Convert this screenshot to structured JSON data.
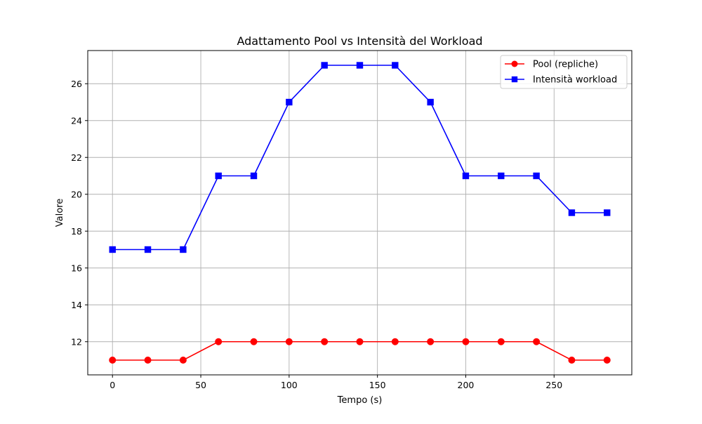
{
  "chart_data": {
    "type": "line",
    "title": "Adattamento Pool vs Intensità del Workload",
    "xlabel": "Tempo (s)",
    "ylabel": "Valore",
    "xlim": [
      -14,
      294
    ],
    "ylim": [
      10.2,
      27.8
    ],
    "xticks": [
      0,
      50,
      100,
      150,
      200,
      250
    ],
    "yticks": [
      12,
      14,
      16,
      18,
      20,
      22,
      24,
      26
    ],
    "grid": true,
    "legend_position": "top-right",
    "x": [
      0,
      20,
      40,
      60,
      80,
      100,
      120,
      140,
      160,
      180,
      200,
      220,
      240,
      260,
      280
    ],
    "series": [
      {
        "name": "Pool (repliche)",
        "color": "#ff0000",
        "marker": "circle",
        "values": [
          11,
          11,
          11,
          12,
          12,
          12,
          12,
          12,
          12,
          12,
          12,
          12,
          12,
          11,
          11
        ]
      },
      {
        "name": "Intensità workload",
        "color": "#0000ff",
        "marker": "square",
        "values": [
          17,
          17,
          17,
          21,
          21,
          25,
          27,
          27,
          27,
          25,
          21,
          21,
          21,
          19,
          19
        ]
      }
    ]
  }
}
